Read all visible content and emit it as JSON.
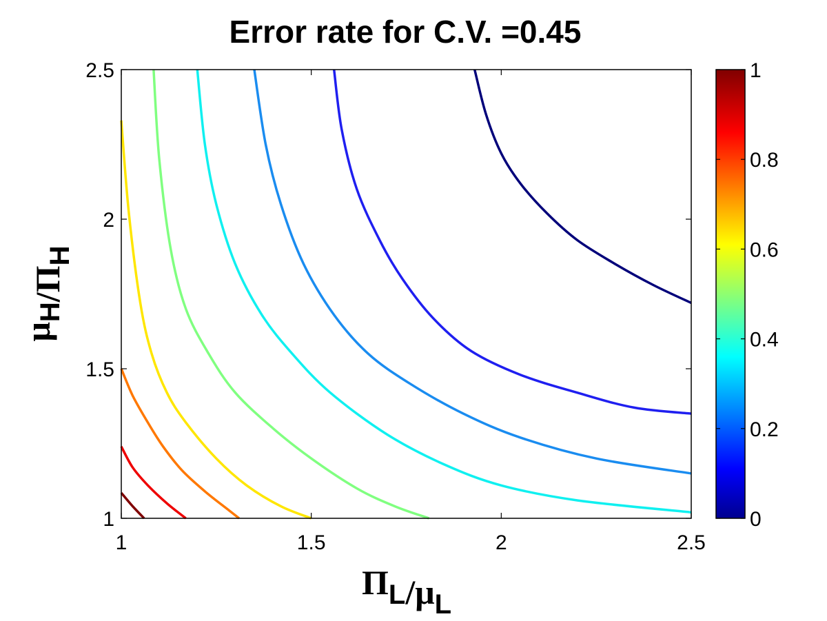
{
  "chart_data": {
    "type": "contour",
    "title": "Error rate for C.V. =0.45",
    "xlabel": {
      "parts": [
        {
          "text": "Π",
          "sub": "L"
        },
        {
          "text": "/μ",
          "sub": "L"
        }
      ]
    },
    "ylabel": {
      "parts": [
        {
          "text": "μ",
          "sub": "H"
        },
        {
          "text": "/Π",
          "sub": "H"
        }
      ]
    },
    "xlim": [
      1,
      2.5
    ],
    "ylim": [
      1,
      2.5
    ],
    "x_ticks": [
      "1",
      "1.5",
      "2",
      "2.5"
    ],
    "y_ticks": [
      "1",
      "1.5",
      "2",
      "2.5"
    ],
    "colorbar": {
      "range": [
        0,
        1
      ],
      "ticks": [
        "0",
        "0.2",
        "0.4",
        "0.6",
        "0.8",
        "1"
      ],
      "colormap": "jet"
    },
    "series": [
      {
        "level": 0.95,
        "color": "#800000",
        "points": [
          [
            1.0,
            1.085
          ],
          [
            1.03,
            1.04
          ],
          [
            1.06,
            1.0
          ]
        ]
      },
      {
        "level": 0.88,
        "color": "#ee0000",
        "points": [
          [
            1.0,
            1.24
          ],
          [
            1.03,
            1.17
          ],
          [
            1.07,
            1.11
          ],
          [
            1.12,
            1.05
          ],
          [
            1.17,
            1.0
          ]
        ]
      },
      {
        "level": 0.73,
        "color": "#ff7800",
        "points": [
          [
            1.0,
            1.5
          ],
          [
            1.03,
            1.41
          ],
          [
            1.07,
            1.32
          ],
          [
            1.11,
            1.24
          ],
          [
            1.16,
            1.16
          ],
          [
            1.22,
            1.09
          ],
          [
            1.28,
            1.03
          ],
          [
            1.31,
            1.0
          ]
        ]
      },
      {
        "level": 0.62,
        "color": "#ffe600",
        "points": [
          [
            1.0,
            2.33
          ],
          [
            1.02,
            2.02
          ],
          [
            1.05,
            1.72
          ],
          [
            1.08,
            1.55
          ],
          [
            1.12,
            1.42
          ],
          [
            1.17,
            1.32
          ],
          [
            1.25,
            1.2
          ],
          [
            1.33,
            1.11
          ],
          [
            1.42,
            1.04
          ],
          [
            1.5,
            1.0
          ]
        ]
      },
      {
        "level": 0.52,
        "color": "#80ff80",
        "points": [
          [
            1.085,
            2.5
          ],
          [
            1.1,
            2.2
          ],
          [
            1.13,
            1.9
          ],
          [
            1.17,
            1.7
          ],
          [
            1.23,
            1.55
          ],
          [
            1.3,
            1.42
          ],
          [
            1.4,
            1.3
          ],
          [
            1.5,
            1.2
          ],
          [
            1.62,
            1.1
          ],
          [
            1.72,
            1.04
          ],
          [
            1.81,
            1.0
          ]
        ]
      },
      {
        "level": 0.4,
        "color": "#10f0f0",
        "points": [
          [
            1.2,
            2.5
          ],
          [
            1.22,
            2.25
          ],
          [
            1.25,
            2.05
          ],
          [
            1.3,
            1.85
          ],
          [
            1.37,
            1.68
          ],
          [
            1.45,
            1.55
          ],
          [
            1.55,
            1.42
          ],
          [
            1.7,
            1.28
          ],
          [
            1.85,
            1.18
          ],
          [
            2.0,
            1.11
          ],
          [
            2.2,
            1.06
          ],
          [
            2.5,
            1.02
          ]
        ]
      },
      {
        "level": 0.28,
        "color": "#1a8cf0",
        "points": [
          [
            1.35,
            2.5
          ],
          [
            1.38,
            2.25
          ],
          [
            1.42,
            2.05
          ],
          [
            1.48,
            1.85
          ],
          [
            1.56,
            1.68
          ],
          [
            1.65,
            1.55
          ],
          [
            1.76,
            1.45
          ],
          [
            1.9,
            1.35
          ],
          [
            2.05,
            1.27
          ],
          [
            2.25,
            1.2
          ],
          [
            2.5,
            1.15
          ]
        ]
      },
      {
        "level": 0.15,
        "color": "#1f1ff0",
        "points": [
          [
            1.56,
            2.5
          ],
          [
            1.58,
            2.3
          ],
          [
            1.62,
            2.1
          ],
          [
            1.68,
            1.93
          ],
          [
            1.74,
            1.8
          ],
          [
            1.82,
            1.67
          ],
          [
            1.92,
            1.56
          ],
          [
            2.05,
            1.48
          ],
          [
            2.2,
            1.42
          ],
          [
            2.35,
            1.37
          ],
          [
            2.5,
            1.35
          ]
        ]
      },
      {
        "level": 0.05,
        "color": "#00007a",
        "points": [
          [
            1.93,
            2.5
          ],
          [
            1.96,
            2.35
          ],
          [
            2.0,
            2.22
          ],
          [
            2.05,
            2.12
          ],
          [
            2.12,
            2.02
          ],
          [
            2.2,
            1.93
          ],
          [
            2.3,
            1.85
          ],
          [
            2.4,
            1.78
          ],
          [
            2.5,
            1.72
          ]
        ]
      }
    ]
  }
}
